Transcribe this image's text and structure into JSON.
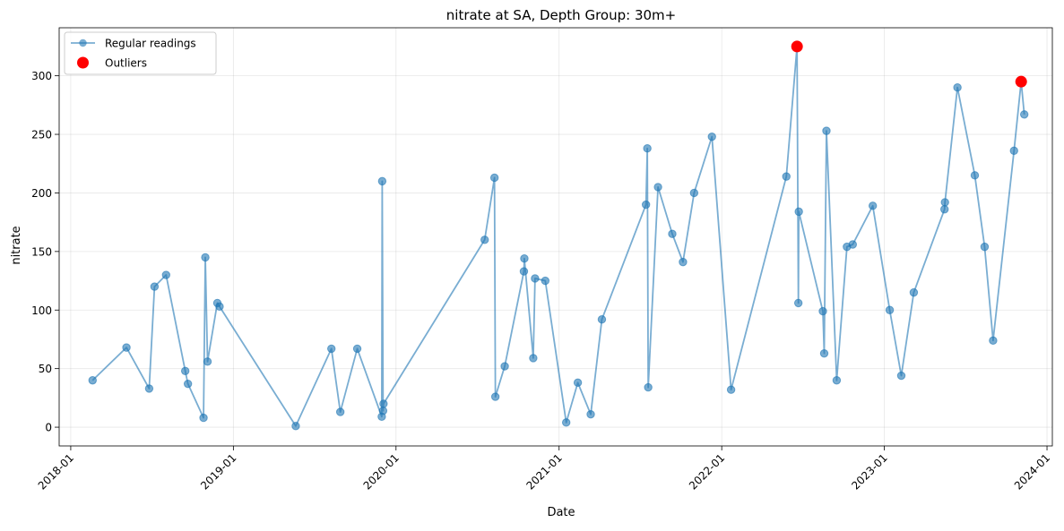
{
  "chart_data": {
    "type": "line",
    "title": "nitrate at SA, Depth Group: 30m+",
    "xlabel": "Date",
    "ylabel": "nitrate",
    "x_axis_type": "date",
    "xlim": [
      "2017-12-06",
      "2024-01-13"
    ],
    "ylim": [
      -16,
      341
    ],
    "x_ticks": [
      "2018-01",
      "2019-01",
      "2020-01",
      "2021-01",
      "2022-01",
      "2023-01",
      "2024-01"
    ],
    "y_ticks": [
      0,
      50,
      100,
      150,
      200,
      250,
      300
    ],
    "grid": true,
    "legend_position": "top-left",
    "series": [
      {
        "name": "Regular readings",
        "color": "#1f77b4",
        "style": "line-with-markers",
        "x": [
          "2018-02-19",
          "2018-05-06",
          "2018-06-26",
          "2018-07-08",
          "2018-08-03",
          "2018-09-15",
          "2018-09-21",
          "2018-10-26",
          "2018-10-30",
          "2018-11-04",
          "2018-11-26",
          "2018-12-01",
          "2019-05-21",
          "2019-08-09",
          "2019-08-29",
          "2019-10-06",
          "2019-11-30",
          "2019-12-01",
          "2019-12-03",
          "2019-12-04",
          "2020-07-18",
          "2020-08-09",
          "2020-08-11",
          "2020-09-01",
          "2020-10-14",
          "2020-10-15",
          "2020-11-04",
          "2020-11-08",
          "2020-12-01",
          "2021-01-17",
          "2021-02-12",
          "2021-03-13",
          "2021-04-07",
          "2021-07-15",
          "2021-07-18",
          "2021-07-20",
          "2021-08-11",
          "2021-09-12",
          "2021-10-06",
          "2021-10-31",
          "2021-12-10",
          "2022-01-22",
          "2022-05-26",
          "2022-06-19",
          "2022-06-22",
          "2022-06-23",
          "2022-08-16",
          "2022-08-19",
          "2022-08-24",
          "2022-09-16",
          "2022-10-09",
          "2022-10-22",
          "2022-12-06",
          "2023-01-13",
          "2023-02-08",
          "2023-03-08",
          "2023-05-16",
          "2023-05-17",
          "2023-06-14",
          "2023-07-23",
          "2023-08-14",
          "2023-09-02",
          "2023-10-19",
          "2023-11-04",
          "2023-11-11"
        ],
        "y": [
          40,
          68,
          33,
          120,
          130,
          48,
          37,
          8,
          145,
          56,
          106,
          103,
          1,
          67,
          13,
          67,
          9,
          210,
          14,
          20,
          160,
          213,
          26,
          52,
          133,
          144,
          59,
          127,
          125,
          4,
          38,
          11,
          92,
          190,
          238,
          34,
          205,
          165,
          141,
          200,
          248,
          32,
          214,
          325,
          106,
          184,
          99,
          63,
          253,
          40,
          154,
          156,
          189,
          100,
          44,
          115,
          186,
          192,
          290,
          215,
          154,
          74,
          236,
          295,
          267
        ]
      },
      {
        "name": "Outliers",
        "color": "#ff0000",
        "style": "markers",
        "x": [
          "2022-06-19",
          "2023-11-04"
        ],
        "y": [
          325,
          295
        ]
      }
    ]
  }
}
